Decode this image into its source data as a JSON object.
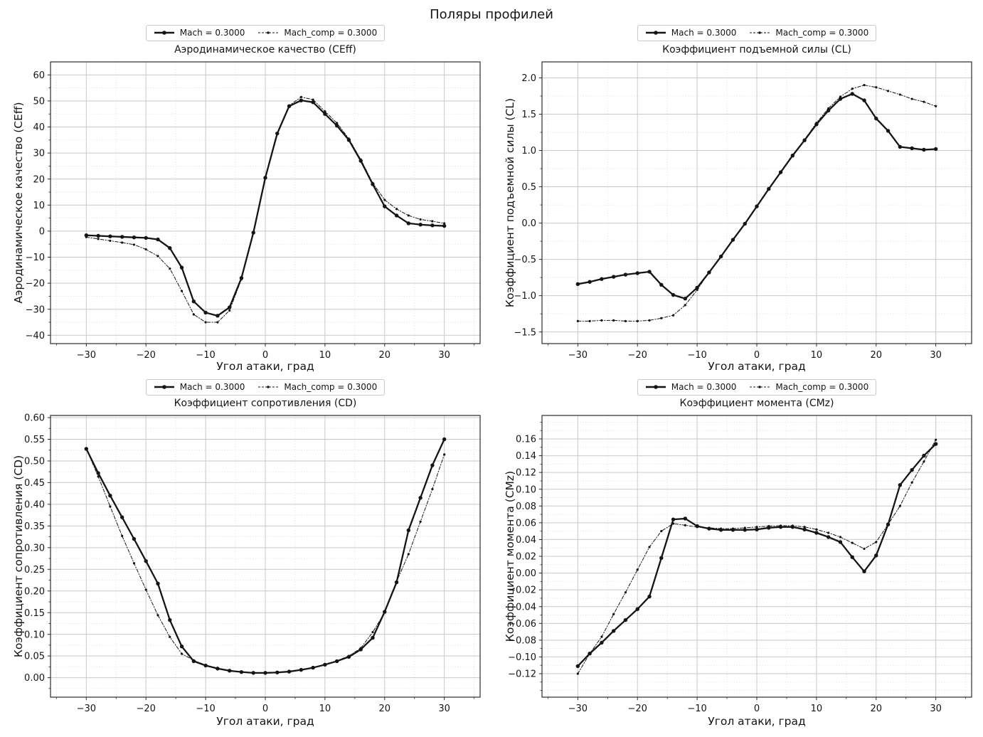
{
  "figure": {
    "suptitle": "Поляры профилей"
  },
  "chart_data": [
    {
      "id": "ceff",
      "type": "line",
      "title": "Аэродинамическое качество (CEff)",
      "ylabel": "Аэродинамическое качество (CEff)",
      "xlabel": "Угол атаки, град",
      "xlim": [
        -36,
        36
      ],
      "ylim": [
        -43.2,
        65.0
      ],
      "xticks": [
        -30,
        -20,
        -10,
        0,
        10,
        20,
        30
      ],
      "yticks": [
        -40,
        -30,
        -20,
        -10,
        0,
        10,
        20,
        30,
        40,
        50,
        60
      ],
      "xminor": 5,
      "yminor": 5,
      "ytick_decimals": 0,
      "grid": "both",
      "legend_position": "upper-center-outside",
      "x": [
        -30,
        -28,
        -26,
        -24,
        -22,
        -20,
        -18,
        -16,
        -14,
        -12,
        -10,
        -8,
        -6,
        -4,
        -2,
        0,
        2,
        4,
        6,
        8,
        10,
        12,
        14,
        16,
        18,
        20,
        22,
        24,
        26,
        28,
        30
      ],
      "series": [
        {
          "name": "Mach = 0.3000",
          "style": "solid",
          "values": [
            -1.6,
            -1.8,
            -2.0,
            -2.2,
            -2.4,
            -2.6,
            -3.2,
            -6.5,
            -14.0,
            -27.0,
            -31.3,
            -32.5,
            -29.3,
            -18.0,
            -0.6,
            20.5,
            37.5,
            48.0,
            50.2,
            49.5,
            45.0,
            40.5,
            35.0,
            27.0,
            18.0,
            9.5,
            6.0,
            3.0,
            2.5,
            2.2,
            2.0
          ]
        },
        {
          "name": "Mach_comp = 0.3000",
          "style": "dashed",
          "values": [
            -2.3,
            -3.0,
            -3.7,
            -4.4,
            -5.2,
            -7.0,
            -9.6,
            -14.4,
            -23.0,
            -32.0,
            -35.0,
            -35.0,
            -30.5,
            -18.5,
            -0.6,
            20.5,
            37.5,
            48.2,
            51.5,
            50.5,
            46.0,
            41.5,
            35.5,
            27.5,
            18.5,
            12.0,
            8.5,
            6.0,
            4.5,
            3.8,
            3.0
          ]
        }
      ]
    },
    {
      "id": "cl",
      "type": "line",
      "title": "Коэффициент подъемной силы (CL)",
      "ylabel": "Коэффициент подъемной силы (CL)",
      "xlabel": "Угол атаки, град",
      "xlim": [
        -36,
        36
      ],
      "ylim": [
        -1.66,
        2.22
      ],
      "xticks": [
        -30,
        -20,
        -10,
        0,
        10,
        20,
        30
      ],
      "yticks": [
        -1.5,
        -1.0,
        -0.5,
        0.0,
        0.5,
        1.0,
        1.5,
        2.0
      ],
      "xminor": 5,
      "yminor": 0.25,
      "ytick_decimals": 1,
      "grid": "both",
      "legend_position": "upper-center-outside",
      "x": [
        -30,
        -28,
        -26,
        -24,
        -22,
        -20,
        -18,
        -16,
        -14,
        -12,
        -10,
        -8,
        -6,
        -4,
        -2,
        0,
        2,
        4,
        6,
        8,
        10,
        12,
        14,
        16,
        18,
        20,
        22,
        24,
        26,
        28,
        30
      ],
      "series": [
        {
          "name": "Mach = 0.3000",
          "style": "solid",
          "values": [
            -0.84,
            -0.81,
            -0.77,
            -0.74,
            -0.71,
            -0.69,
            -0.67,
            -0.85,
            -0.99,
            -1.04,
            -0.89,
            -0.68,
            -0.46,
            -0.23,
            -0.01,
            0.23,
            0.47,
            0.7,
            0.93,
            1.14,
            1.36,
            1.55,
            1.71,
            1.78,
            1.69,
            1.44,
            1.27,
            1.05,
            1.03,
            1.01,
            1.02
          ]
        },
        {
          "name": "Mach_comp = 0.3000",
          "style": "dashed",
          "values": [
            -1.35,
            -1.35,
            -1.34,
            -1.34,
            -1.35,
            -1.35,
            -1.34,
            -1.31,
            -1.27,
            -1.13,
            -0.92,
            -0.68,
            -0.46,
            -0.23,
            -0.01,
            0.23,
            0.47,
            0.71,
            0.94,
            1.15,
            1.38,
            1.58,
            1.74,
            1.85,
            1.9,
            1.87,
            1.82,
            1.77,
            1.71,
            1.67,
            1.61
          ]
        }
      ]
    },
    {
      "id": "cd",
      "type": "line",
      "title": "Коэффициент сопротивления (CD)",
      "ylabel": "Коэффициент сопротивления (CD)",
      "xlabel": "Угол атаки, град",
      "xlim": [
        -36,
        36
      ],
      "ylim": [
        -0.045,
        0.605
      ],
      "xticks": [
        -30,
        -20,
        -10,
        0,
        10,
        20,
        30
      ],
      "yticks": [
        0.0,
        0.05,
        0.1,
        0.15,
        0.2,
        0.25,
        0.3,
        0.35,
        0.4,
        0.45,
        0.5,
        0.55,
        0.6
      ],
      "xminor": 5,
      "yminor": 0.025,
      "ytick_decimals": 2,
      "grid": "both",
      "legend_position": "upper-center-outside",
      "x": [
        -30,
        -28,
        -26,
        -24,
        -22,
        -20,
        -18,
        -16,
        -14,
        -12,
        -10,
        -8,
        -6,
        -4,
        -2,
        0,
        2,
        4,
        6,
        8,
        10,
        12,
        14,
        16,
        18,
        20,
        22,
        24,
        26,
        28,
        30
      ],
      "series": [
        {
          "name": "Mach = 0.3000",
          "style": "solid",
          "values": [
            0.528,
            0.472,
            0.42,
            0.37,
            0.32,
            0.269,
            0.217,
            0.133,
            0.072,
            0.038,
            0.028,
            0.021,
            0.016,
            0.013,
            0.011,
            0.011,
            0.012,
            0.014,
            0.018,
            0.023,
            0.03,
            0.038,
            0.048,
            0.065,
            0.092,
            0.152,
            0.22,
            0.34,
            0.415,
            0.49,
            0.55
          ]
        },
        {
          "name": "Mach_comp = 0.3000",
          "style": "dashed",
          "values": [
            0.528,
            0.464,
            0.395,
            0.327,
            0.264,
            0.203,
            0.144,
            0.094,
            0.055,
            0.04,
            0.029,
            0.022,
            0.017,
            0.013,
            0.011,
            0.011,
            0.012,
            0.014,
            0.018,
            0.023,
            0.031,
            0.039,
            0.05,
            0.068,
            0.105,
            0.15,
            0.222,
            0.285,
            0.36,
            0.435,
            0.515
          ]
        }
      ]
    },
    {
      "id": "cmz",
      "type": "line",
      "title": "Коэффициент момента (CMz)",
      "ylabel": "Коэффициент момента (CMz)",
      "xlabel": "Угол атаки, град",
      "xlim": [
        -36,
        36
      ],
      "ylim": [
        -0.148,
        0.188
      ],
      "xticks": [
        -30,
        -20,
        -10,
        0,
        10,
        20,
        30
      ],
      "yticks": [
        -0.12,
        -0.1,
        -0.08,
        -0.06,
        -0.04,
        -0.02,
        0.0,
        0.02,
        0.04,
        0.06,
        0.08,
        0.1,
        0.12,
        0.14,
        0.16
      ],
      "xminor": 5,
      "yminor": 0.01,
      "ytick_decimals": 2,
      "grid": "both",
      "legend_position": "upper-center-outside",
      "x": [
        -30,
        -28,
        -26,
        -24,
        -22,
        -20,
        -18,
        -16,
        -14,
        -12,
        -10,
        -8,
        -6,
        -4,
        -2,
        0,
        2,
        4,
        6,
        8,
        10,
        12,
        14,
        16,
        18,
        20,
        22,
        24,
        26,
        28,
        30
      ],
      "series": [
        {
          "name": "Mach = 0.3000",
          "style": "solid",
          "values": [
            -0.111,
            -0.096,
            -0.083,
            -0.069,
            -0.056,
            -0.043,
            -0.028,
            0.018,
            0.064,
            0.065,
            0.056,
            0.053,
            0.0515,
            0.0515,
            0.0515,
            0.052,
            0.054,
            0.055,
            0.055,
            0.052,
            0.048,
            0.043,
            0.037,
            0.019,
            0.002,
            0.021,
            0.058,
            0.105,
            0.123,
            0.14,
            0.154
          ]
        },
        {
          "name": "Mach_comp = 0.3000",
          "style": "dashed",
          "values": [
            -0.12,
            -0.096,
            -0.076,
            -0.049,
            -0.023,
            0.004,
            0.031,
            0.05,
            0.059,
            0.057,
            0.055,
            0.054,
            0.053,
            0.053,
            0.054,
            0.055,
            0.056,
            0.0565,
            0.0565,
            0.055,
            0.052,
            0.048,
            0.043,
            0.036,
            0.029,
            0.037,
            0.058,
            0.08,
            0.108,
            0.133,
            0.159
          ]
        }
      ]
    }
  ]
}
